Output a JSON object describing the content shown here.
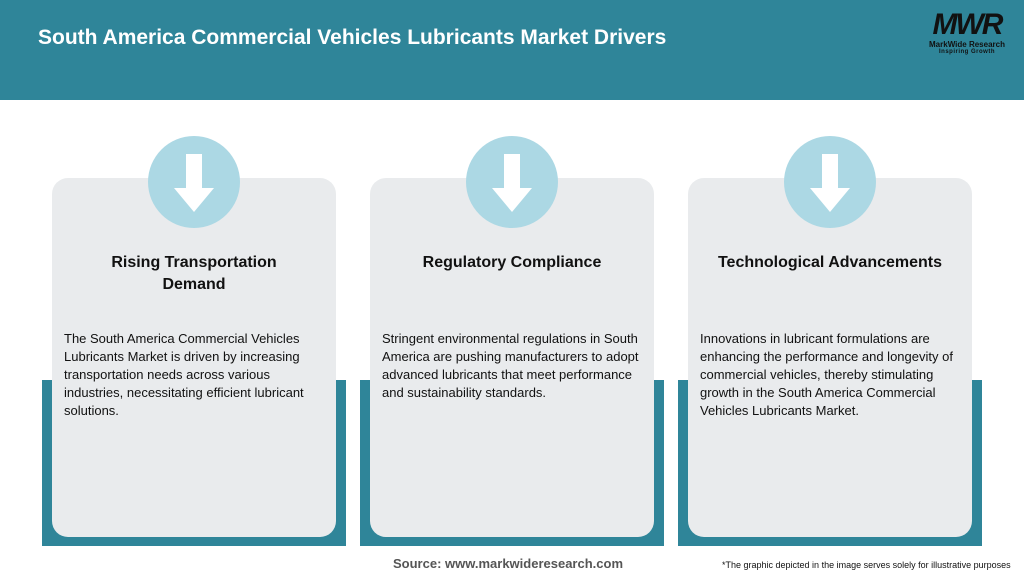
{
  "header": {
    "title": "South America Commercial Vehicles Lubricants Market Drivers"
  },
  "logo": {
    "mark": "MWR",
    "name": "MarkWide Research",
    "tagline": "Inspiring Growth"
  },
  "colors": {
    "teal": "#2f8599",
    "circle": "#acd8e4",
    "card": "#e9ebed"
  },
  "cards": [
    {
      "icon": "arrow-down-icon",
      "title": "Rising Transportation Demand",
      "text": "The South America Commercial Vehicles Lubricants Market is driven by increasing transportation needs across various industries, necessitating efficient lubricant solutions."
    },
    {
      "icon": "arrow-down-icon",
      "title": "Regulatory Compliance",
      "text": "Stringent environmental regulations in South America are pushing manufacturers to adopt advanced lubricants that meet performance and sustainability standards."
    },
    {
      "icon": "arrow-down-icon",
      "title": "Technological Advancements",
      "text": "Innovations in lubricant formulations are enhancing the performance and longevity of commercial vehicles, thereby stimulating growth in the South America Commercial Vehicles Lubricants Market."
    }
  ],
  "footer": {
    "source": "Source: www.markwideresearch.com",
    "note": "*The graphic depicted in the image serves solely for illustrative purposes"
  }
}
